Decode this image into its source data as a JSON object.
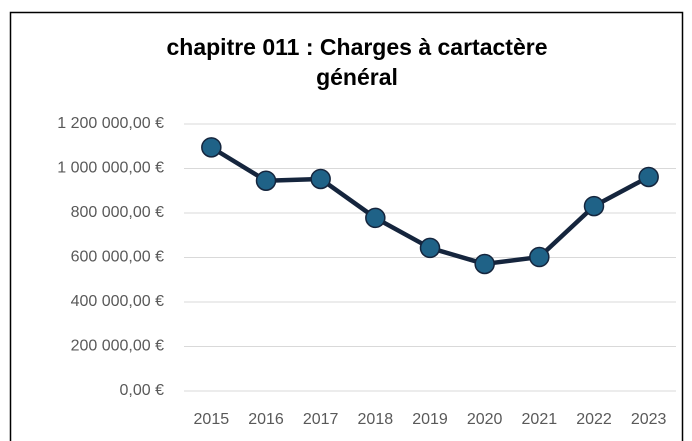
{
  "chart_data": {
    "type": "line",
    "title": "chapitre 011 : Charges à cartactère général",
    "categories": [
      "2015",
      "2016",
      "2017",
      "2018",
      "2019",
      "2020",
      "2021",
      "2022",
      "2023"
    ],
    "series": [
      {
        "name": "chapitre 011",
        "color": "#1f6287",
        "line_color": "#15253d",
        "values": [
          1095000,
          945000,
          953000,
          778000,
          643000,
          571000,
          602000,
          831000,
          962000
        ]
      }
    ],
    "ylim": [
      0,
      1200000
    ],
    "yticks": [
      {
        "value": 0,
        "label": "0,00 €"
      },
      {
        "value": 200000,
        "label": "200 000,00 €"
      },
      {
        "value": 400000,
        "label": "400 000,00 €"
      },
      {
        "value": 600000,
        "label": "600 000,00 €"
      },
      {
        "value": 800000,
        "label": "800 000,00 €"
      },
      {
        "value": 1000000,
        "label": "1 000 000,00 €"
      },
      {
        "value": 1200000,
        "label": "1 200 000,00 €"
      }
    ],
    "grid": true
  }
}
